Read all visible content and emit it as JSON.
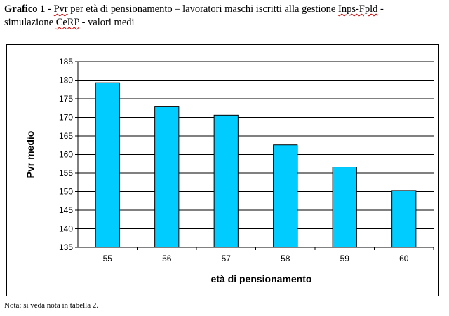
{
  "caption": {
    "label": "Grafico 1",
    "sep": " - ",
    "part1": "Pvr",
    "part2": " per età di pensionamento  – lavoratori maschi iscritti alla gestione ",
    "part3": "Inps-Fpld",
    "part4": " -",
    "line2_a": "simulazione ",
    "line2_b": "CeRP",
    "line2_c": " - valori medi"
  },
  "note": "Nota: si veda nota in tabella 2.",
  "colors": {
    "bar": "#00ccff",
    "bar_stroke": "#000000",
    "grid": "#000000"
  },
  "chart_data": {
    "type": "bar",
    "categories": [
      "55",
      "56",
      "57",
      "58",
      "59",
      "60"
    ],
    "values": [
      179.3,
      173.0,
      170.6,
      162.6,
      156.6,
      150.3
    ],
    "xlabel": "età di pensionamento",
    "ylabel": "Pvr medio",
    "ylim": [
      135,
      185
    ],
    "yticks": [
      135,
      140,
      145,
      150,
      155,
      160,
      165,
      170,
      175,
      180,
      185
    ],
    "grid": true
  }
}
